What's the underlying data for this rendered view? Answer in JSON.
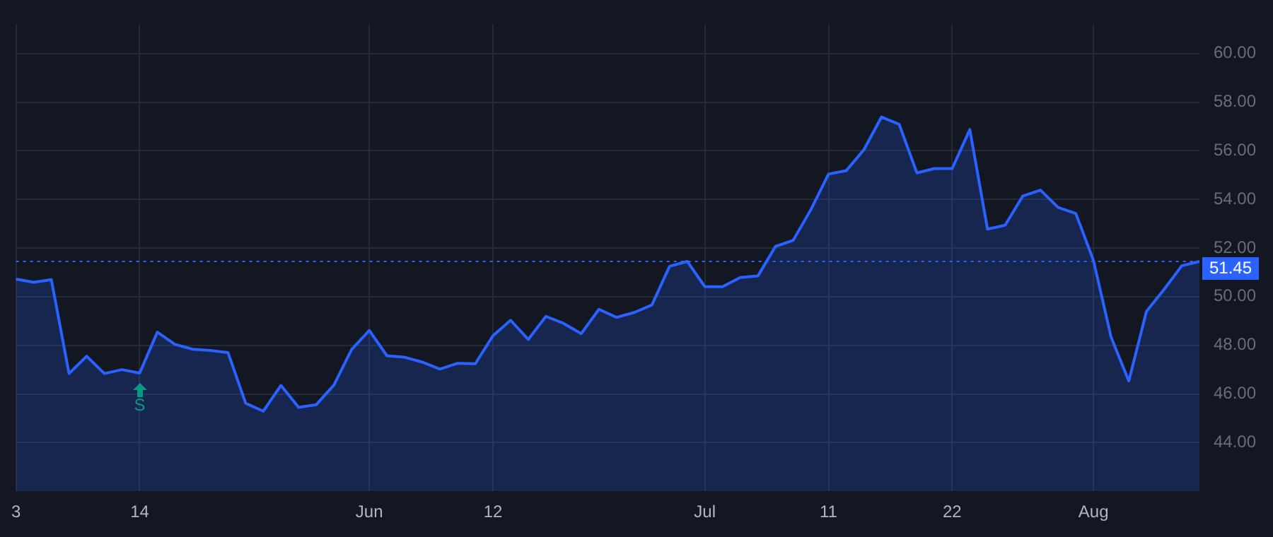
{
  "chart_data": {
    "type": "area",
    "categories": [
      "3",
      null,
      null,
      null,
      null,
      null,
      null,
      "14",
      null,
      null,
      null,
      null,
      null,
      null,
      null,
      null,
      null,
      null,
      null,
      null,
      "Jun",
      null,
      null,
      null,
      null,
      null,
      null,
      "12",
      null,
      null,
      null,
      null,
      null,
      null,
      null,
      null,
      null,
      null,
      null,
      "Jul",
      null,
      null,
      null,
      null,
      null,
      null,
      "11",
      null,
      null,
      null,
      null,
      null,
      null,
      "22",
      null,
      null,
      null,
      null,
      null,
      null,
      null,
      "Aug",
      null,
      null,
      null,
      null,
      null,
      null
    ],
    "series": [
      {
        "color": "#2962ff",
        "values": [
          50.72,
          50.59,
          50.7,
          46.84,
          47.55,
          46.84,
          47.0,
          46.86,
          48.54,
          48.04,
          47.84,
          47.79,
          47.7,
          45.62,
          45.29,
          46.35,
          45.45,
          45.56,
          46.37,
          47.83,
          48.61,
          47.57,
          47.51,
          47.31,
          47.02,
          47.26,
          47.24,
          48.39,
          49.03,
          48.24,
          49.19,
          48.9,
          48.48,
          49.48,
          49.15,
          49.35,
          49.66,
          51.25,
          51.45,
          50.41,
          50.41,
          50.79,
          50.85,
          52.07,
          52.32,
          53.58,
          55.04,
          55.18,
          56.04,
          57.39,
          57.09,
          55.09,
          55.27,
          55.27,
          56.87,
          52.78,
          52.94,
          54.14,
          54.38,
          53.67,
          53.42,
          51.49,
          48.33,
          46.53,
          49.39,
          50.3,
          51.27,
          51.45
        ]
      }
    ],
    "ylim": [
      42,
      61.2
    ],
    "yticks": [
      {
        "value": 44,
        "label": "44.00"
      },
      {
        "value": 46,
        "label": "46.00"
      },
      {
        "value": 48,
        "label": "48.00"
      },
      {
        "value": 50,
        "label": "50.00"
      },
      {
        "value": 52,
        "label": "52.00"
      },
      {
        "value": 54,
        "label": "54.00"
      },
      {
        "value": 56,
        "label": "56.00"
      },
      {
        "value": 58,
        "label": "58.00"
      },
      {
        "value": 60,
        "label": "60.00"
      }
    ],
    "grid": true,
    "legend": false,
    "marker": "none",
    "line_style": "solid",
    "ref_lines": [
      {
        "axis": "y",
        "value": 51.45,
        "label": "51.45",
        "color": "#2962ff",
        "line_style": "dotted"
      }
    ],
    "annotations": [
      {
        "text": "S",
        "x": "14",
        "y": 46.86
      }
    ]
  }
}
